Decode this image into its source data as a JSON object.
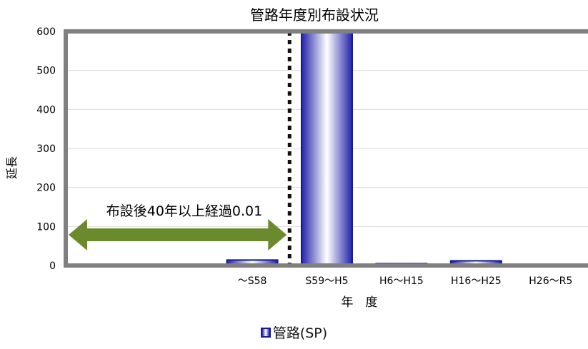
{
  "chart_data": {
    "type": "bar",
    "title": "管路年度別布設状況",
    "xlabel": "年　度",
    "ylabel": "延長",
    "categories": [
      "",
      "",
      "～S58",
      "S59～H5",
      "H6～H15",
      "H16～H25",
      "H26～R5"
    ],
    "series": [
      {
        "name": "管路(SP)",
        "values": [
          0,
          0,
          14,
          598,
          5,
          12,
          0
        ]
      }
    ],
    "ylim": [
      0,
      600
    ],
    "yticks": [
      0,
      100,
      200,
      300,
      400,
      500,
      600
    ],
    "grid": true,
    "legend": "bottom",
    "annotation": {
      "text": "布設後40年以上経過0.01",
      "from_category_index": 0,
      "to_category_index": 2,
      "color": "#6b8a2e"
    },
    "divider_after_category_index": 2,
    "colors": {
      "bar": "#2222aa",
      "bar_highlight": "#ffffff",
      "frame": "#808080",
      "arrow": "#6b8a2e"
    }
  }
}
